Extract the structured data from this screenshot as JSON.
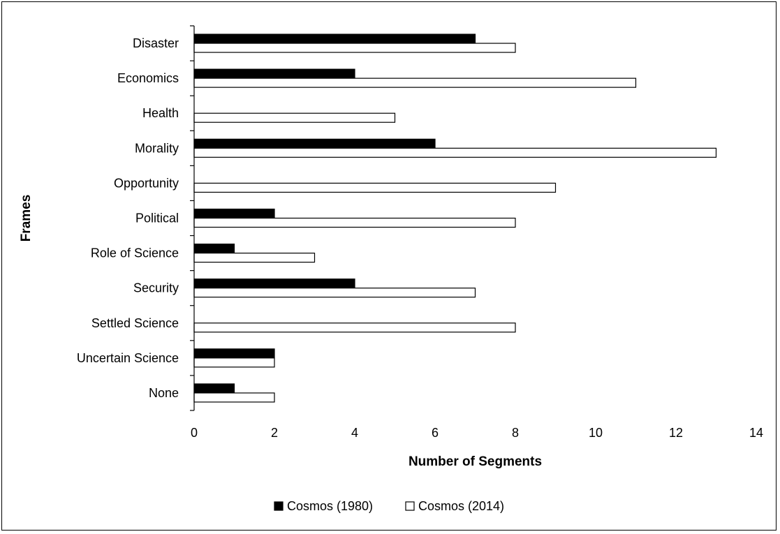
{
  "chart_data": {
    "type": "bar",
    "orientation": "horizontal",
    "categories": [
      "Disaster",
      "Economics",
      "Health",
      "Morality",
      "Opportunity",
      "Political",
      "Role of Science",
      "Security",
      "Settled Science",
      "Uncertain Science",
      "None"
    ],
    "series": [
      {
        "name": "Cosmos (1980)",
        "values": [
          7,
          4,
          0,
          6,
          0,
          2,
          1,
          4,
          0,
          2,
          1
        ],
        "color": "#000000"
      },
      {
        "name": "Cosmos (2014)",
        "values": [
          8,
          11,
          5,
          13,
          9,
          8,
          3,
          7,
          8,
          2,
          2
        ],
        "color": "#ffffff"
      }
    ],
    "xlabel": "Number of Segments",
    "ylabel": "Frames",
    "xlim": [
      0,
      14
    ],
    "xticks": [
      "0",
      "2",
      "4",
      "6",
      "8",
      "10",
      "12",
      "14"
    ],
    "grid": false,
    "legend_position": "bottom"
  }
}
